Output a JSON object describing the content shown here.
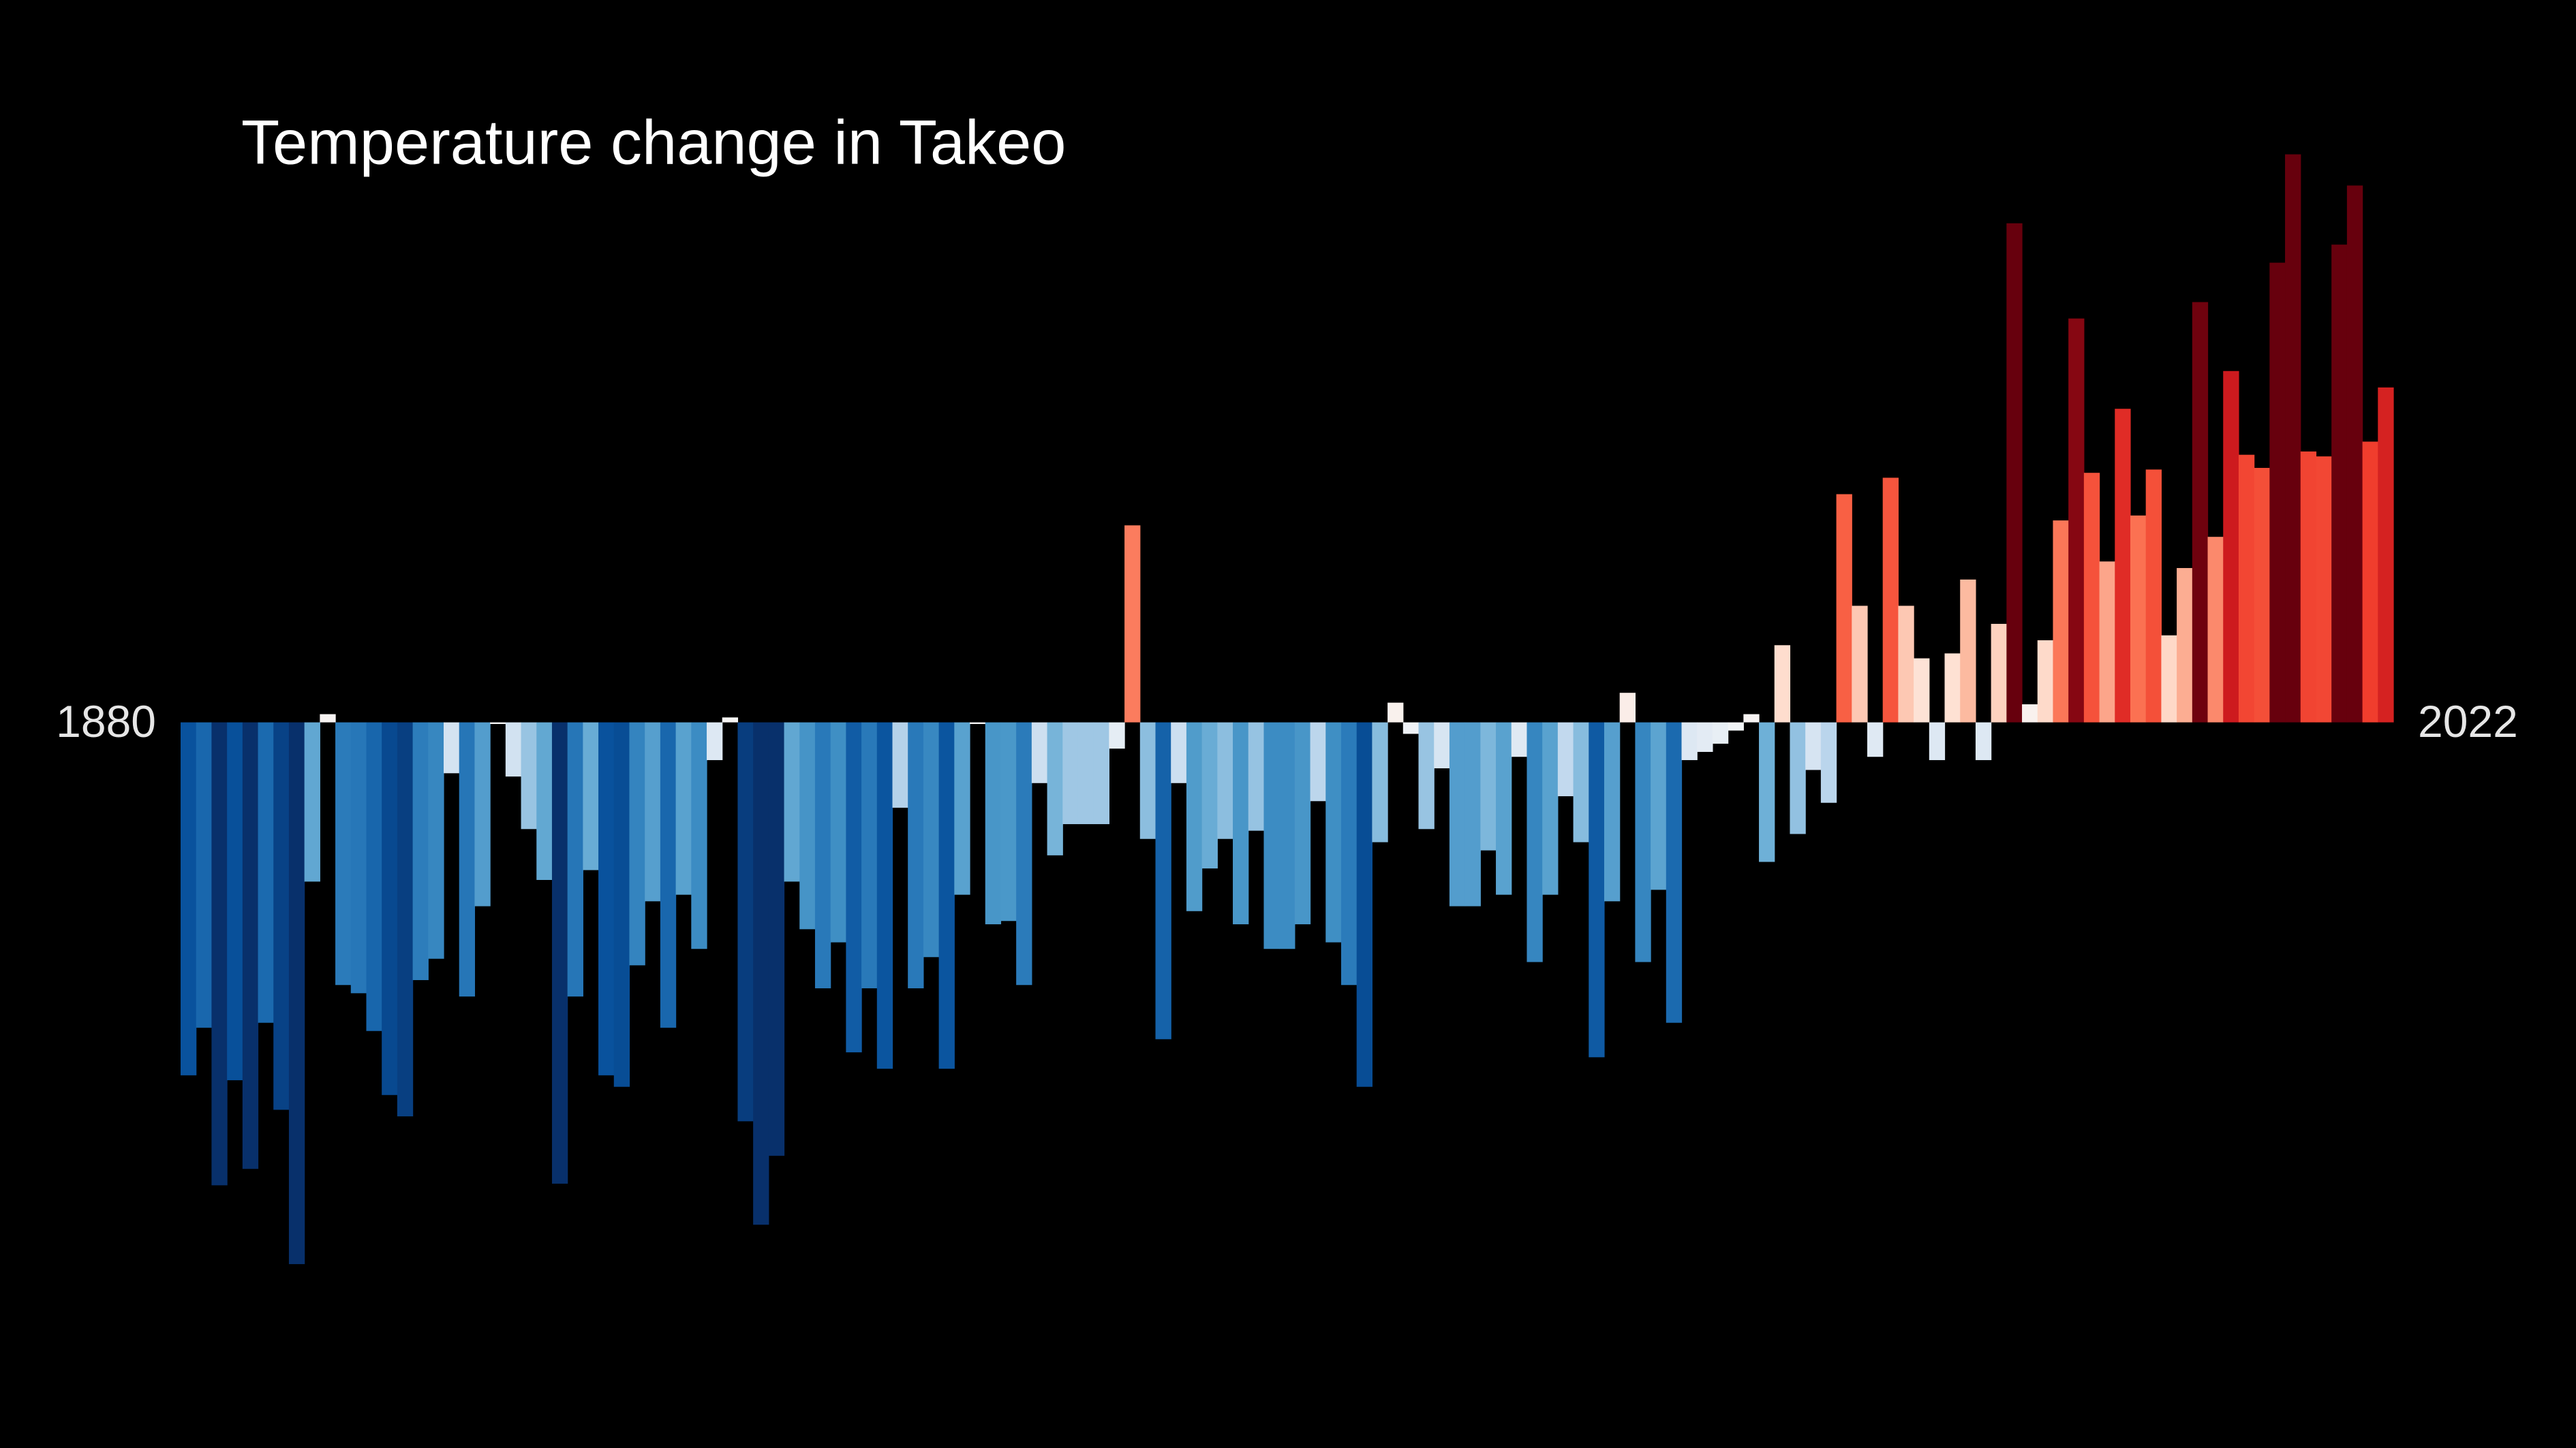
{
  "chart_data": {
    "type": "bar",
    "title": "Temperature change in Takeo",
    "x": [
      1880,
      1881,
      1882,
      1883,
      1884,
      1885,
      1886,
      1887,
      1888,
      1889,
      1890,
      1891,
      1892,
      1893,
      1894,
      1895,
      1896,
      1897,
      1898,
      1899,
      1900,
      1901,
      1902,
      1903,
      1904,
      1905,
      1906,
      1907,
      1908,
      1909,
      1910,
      1911,
      1912,
      1913,
      1914,
      1915,
      1916,
      1917,
      1918,
      1919,
      1920,
      1921,
      1922,
      1923,
      1924,
      1925,
      1926,
      1927,
      1928,
      1929,
      1930,
      1931,
      1932,
      1933,
      1934,
      1935,
      1936,
      1937,
      1938,
      1939,
      1940,
      1941,
      1942,
      1943,
      1944,
      1945,
      1946,
      1947,
      1948,
      1949,
      1950,
      1951,
      1952,
      1953,
      1954,
      1955,
      1956,
      1957,
      1958,
      1959,
      1960,
      1961,
      1962,
      1963,
      1964,
      1965,
      1966,
      1967,
      1968,
      1969,
      1970,
      1971,
      1972,
      1973,
      1974,
      1975,
      1976,
      1977,
      1978,
      1979,
      1980,
      1981,
      1982,
      1983,
      1984,
      1985,
      1986,
      1987,
      1988,
      1989,
      1990,
      1991,
      1992,
      1993,
      1994,
      1995,
      1996,
      1997,
      1998,
      1999,
      2000,
      2001,
      2002,
      2003,
      2004,
      2005,
      2006,
      2007,
      2008,
      2009,
      2010,
      2011,
      2012,
      2013,
      2014,
      2015,
      2016,
      2017,
      2018,
      2019,
      2020,
      2021,
      2022
    ],
    "values": [
      -2.15,
      -1.86,
      -2.82,
      -2.18,
      -2.72,
      -1.83,
      -2.36,
      -3.3,
      -0.97,
      0.05,
      -1.6,
      -1.65,
      -1.88,
      -2.27,
      -2.4,
      -1.57,
      -1.44,
      -0.31,
      -1.67,
      -1.12,
      -0.01,
      -0.33,
      -0.65,
      -0.96,
      -2.81,
      -1.67,
      -0.9,
      -2.15,
      -2.22,
      -1.48,
      -1.09,
      -1.86,
      -1.05,
      -1.38,
      -0.23,
      0.03,
      -2.43,
      -3.06,
      -2.64,
      -0.97,
      -1.26,
      -1.62,
      -1.34,
      -2.01,
      -1.62,
      -2.11,
      -0.52,
      -1.62,
      -1.43,
      -2.11,
      -1.05,
      -0.01,
      -1.23,
      -1.21,
      -1.6,
      -0.37,
      -0.81,
      -0.62,
      -0.62,
      -0.62,
      -0.16,
      1.2,
      -0.71,
      -1.93,
      -0.37,
      -1.15,
      -0.89,
      -0.71,
      -1.23,
      -0.66,
      -1.38,
      -1.38,
      -1.23,
      -0.48,
      -1.34,
      -1.6,
      -2.22,
      -0.73,
      0.12,
      -0.07,
      -0.65,
      -0.28,
      -1.12,
      -1.12,
      -0.78,
      -1.05,
      -0.21,
      -1.46,
      -1.05,
      -0.45,
      -0.73,
      -2.04,
      -1.09,
      0.18,
      -1.46,
      -1.02,
      -1.83,
      -0.23,
      -0.18,
      -0.13,
      -0.05,
      0.05,
      -0.85,
      0.47,
      -0.68,
      -0.29,
      -0.49,
      1.39,
      0.71,
      -0.21,
      1.49,
      0.71,
      0.39,
      -0.23,
      0.42,
      0.87,
      -0.23,
      0.6,
      3.04,
      0.11,
      0.5,
      1.23,
      2.46,
      1.52,
      0.98,
      1.91,
      1.26,
      1.54,
      0.53,
      0.94,
      2.56,
      1.13,
      2.14,
      1.63,
      1.55,
      2.8,
      3.46,
      1.65,
      1.62,
      2.91,
      3.27,
      1.71,
      2.04
    ],
    "xlim": [
      1879.5,
      2022.5
    ],
    "xticks": [
      1880,
      2022
    ],
    "ylim": [
      -4.42,
      4.4
    ],
    "colormap": [
      "#08306b",
      "#08306b",
      "#08306b",
      "#08519c",
      "#2171b5",
      "#4292c6",
      "#6baed6",
      "#c6dbef",
      "#f7f7f7",
      "#fee0d2",
      "#fcbba1",
      "#fb6a4a",
      "#ef3b2c",
      "#cb181d",
      "#67000d",
      "#67000d",
      "#67000d"
    ],
    "grid": false
  }
}
